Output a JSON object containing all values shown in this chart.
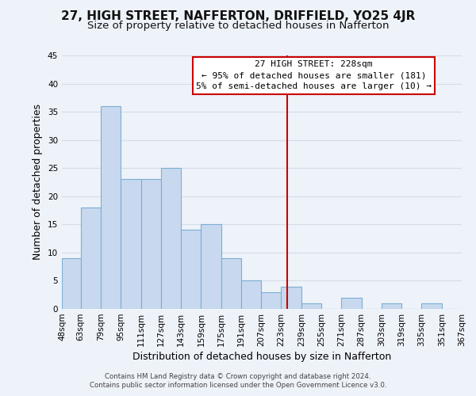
{
  "title": "27, HIGH STREET, NAFFERTON, DRIFFIELD, YO25 4JR",
  "subtitle": "Size of property relative to detached houses in Nafferton",
  "xlabel": "Distribution of detached houses by size in Nafferton",
  "ylabel": "Number of detached properties",
  "bin_labels": [
    "48sqm",
    "63sqm",
    "79sqm",
    "95sqm",
    "111sqm",
    "127sqm",
    "143sqm",
    "159sqm",
    "175sqm",
    "191sqm",
    "207sqm",
    "223sqm",
    "239sqm",
    "255sqm",
    "271sqm",
    "287sqm",
    "303sqm",
    "319sqm",
    "335sqm",
    "351sqm",
    "367sqm"
  ],
  "bin_edges": [
    48,
    63,
    79,
    95,
    111,
    127,
    143,
    159,
    175,
    191,
    207,
    223,
    239,
    255,
    271,
    287,
    303,
    319,
    335,
    351,
    367
  ],
  "bar_heights": [
    9,
    18,
    36,
    23,
    23,
    25,
    14,
    15,
    9,
    5,
    3,
    4,
    1,
    0,
    2,
    0,
    1,
    0,
    1,
    0
  ],
  "bar_color": "#c8d9ef",
  "bar_edge_color": "#7aafd4",
  "grid_color": "#d5dde8",
  "reference_line_x": 228,
  "reference_line_color": "#cc0000",
  "annotation_title": "27 HIGH STREET: 228sqm",
  "annotation_line1": "← 95% of detached houses are smaller (181)",
  "annotation_line2": "5% of semi-detached houses are larger (10) →",
  "ylim": [
    0,
    45
  ],
  "yticks": [
    0,
    5,
    10,
    15,
    20,
    25,
    30,
    35,
    40,
    45
  ],
  "footer1": "Contains HM Land Registry data © Crown copyright and database right 2024.",
  "footer2": "Contains public sector information licensed under the Open Government Licence v3.0.",
  "title_fontsize": 11,
  "subtitle_fontsize": 9.5,
  "axis_fontsize": 9,
  "tick_fontsize": 7.5,
  "background_color": "#eef2f9"
}
